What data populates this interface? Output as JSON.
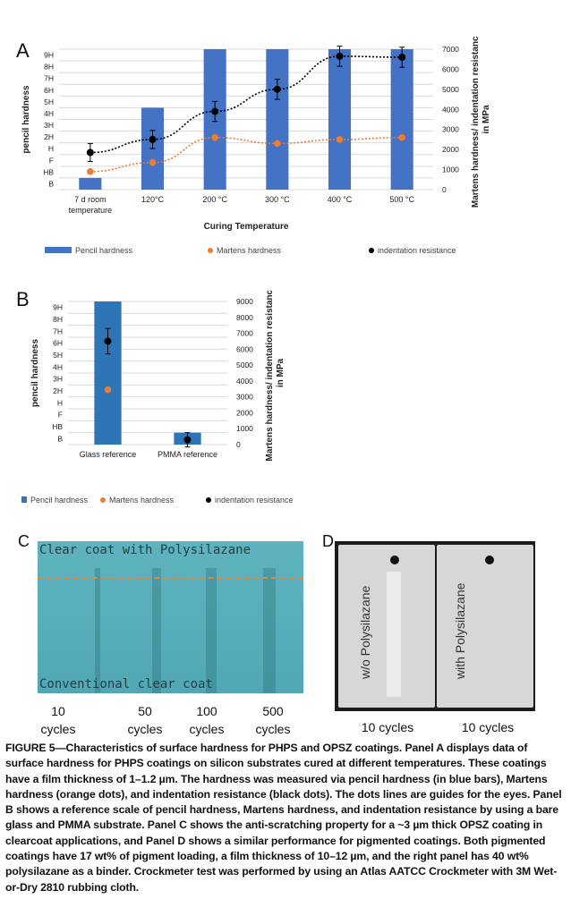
{
  "chart_data": [
    {
      "panel": "A",
      "type": "bar",
      "categories": [
        "7 d room temperature",
        "120°C",
        "200 °C",
        "300 °C",
        "400 °C",
        "500 °C"
      ],
      "xlabel": "Curing Temperature",
      "ylabel": "pencil hardness",
      "y2label": "Martens hardness/ indentation resistance in MPa",
      "y_ticks": [
        "B",
        "HB",
        "F",
        "H",
        "2H",
        "3H",
        "4H",
        "5H",
        "6H",
        "7H",
        "8H",
        "9H"
      ],
      "y2_ticks": [
        "0",
        "1000",
        "2000",
        "3000",
        "4000",
        "5000",
        "6000",
        "7000"
      ],
      "y2lim": [
        0,
        7000
      ],
      "series": [
        {
          "name": "Pencil hardness",
          "kind": "bar",
          "axis": "left",
          "values": [
            "B",
            "4H",
            "9H",
            "9H",
            "9H",
            "9H"
          ],
          "color": "#4472c4"
        },
        {
          "name": "Martens hardness",
          "kind": "dot",
          "axis": "right",
          "values": [
            900,
            1350,
            2600,
            2300,
            2500,
            2600
          ],
          "color": "#ed7d31"
        },
        {
          "name": "indentation resistance",
          "kind": "dot",
          "axis": "right",
          "values": [
            1850,
            2500,
            3900,
            5000,
            6650,
            6600
          ],
          "error": [
            450,
            450,
            500,
            500,
            500,
            500
          ],
          "color": "#000000"
        }
      ],
      "grid": true,
      "legend": "bottom"
    },
    {
      "panel": "B",
      "type": "bar",
      "categories": [
        "Glass reference",
        "PMMA reference"
      ],
      "ylabel": "pencil hardness",
      "y2label": "Martens hardness/ indentation resistance in MPa",
      "y_ticks": [
        "B",
        "HB",
        "F",
        "H",
        "2H",
        "3H",
        "4H",
        "5H",
        "6H",
        "7H",
        "8H",
        "9H"
      ],
      "y2_ticks": [
        "0",
        "1000",
        "2000",
        "3000",
        "4000",
        "5000",
        "6000",
        "7000",
        "8000",
        "9000"
      ],
      "y2lim": [
        0,
        9000
      ],
      "series": [
        {
          "name": "Pencil hardness",
          "kind": "bar",
          "axis": "left",
          "values": [
            "9H",
            "B"
          ],
          "color": "#2e75b6"
        },
        {
          "name": "Martens hardness",
          "kind": "dot",
          "axis": "right",
          "values": [
            3450,
            300
          ],
          "color": "#ed7d31"
        },
        {
          "name": "indentation resistance",
          "kind": "dot",
          "axis": "right",
          "values": [
            6500,
            300
          ],
          "error": [
            800,
            450
          ],
          "color": "#000000"
        }
      ],
      "grid": true,
      "legend": "bottom"
    }
  ],
  "panels": {
    "a_letter": "A",
    "b_letter": "B",
    "c_letter": "C",
    "d_letter": "D"
  },
  "photo_c": {
    "top_label": "Clear coat with Polysilazane",
    "bottom_label": "Conventional clear coat",
    "cycles": [
      "10",
      "50",
      "100",
      "500"
    ],
    "cycles_unit": "cycles"
  },
  "photo_d": {
    "left_label": "w/o Polysilazane",
    "right_label": "with Polysilazane",
    "left_cycles": "10 cycles",
    "right_cycles": "10 cycles"
  },
  "caption": "FIGURE 5—Characteristics of surface hardness for PHPS and OPSZ coatings. Panel A displays data of surface hardness for PHPS coatings on silicon substrates cured at different temperatures. These coatings have a film thickness of 1–1.2 µm. The hardness was measured via pencil hardness (in blue bars), Martens hardness (orange dots), and indentation resistance (black dots). The dots lines are guides for the eyes. Panel B shows a reference scale of pencil hardness, Martens hardness, and indentation resistance by using a bare glass and PMMA substrate. Panel C shows the anti-scratching property for a ~3 µm thick OPSZ coating in clearcoat applications, and Panel D shows a similar performance for pigmented coatings. Both pigmented coatings have 17 wt% of pigment loading, a film thickness of 10–12 µm, and the right panel has 40 wt% polysilazane as a binder. Crockmeter test was performed by using an Atlas AATCC Crockmeter with 3M Wet-or-Dry 2810 rubbing cloth."
}
